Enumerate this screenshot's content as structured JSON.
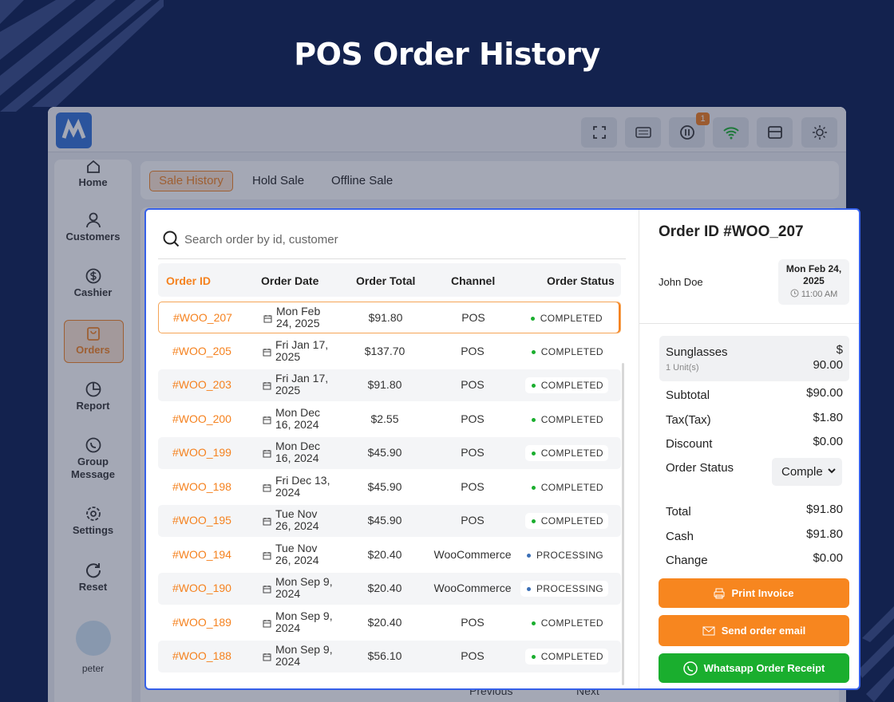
{
  "header": {
    "title": "POS Order History"
  },
  "topbar": {
    "badge": "1"
  },
  "sidebar": {
    "items": [
      "Home",
      "Customers",
      "Cashier",
      "Orders",
      "Report",
      "Group Message",
      "Settings",
      "Reset"
    ],
    "user": "peter"
  },
  "tabs": [
    "Sale History",
    "Hold Sale",
    "Offline Sale"
  ],
  "pagination": {
    "previous": "Previous",
    "next": "Next"
  },
  "search": {
    "placeholder": "Search order by id, customer"
  },
  "table": {
    "columns": [
      "Order ID",
      "Order Date",
      "Order Total",
      "Channel",
      "Order Status"
    ],
    "rows": [
      {
        "id": "#WOO_207",
        "date": "Mon Feb 24, 2025",
        "total": "$91.80",
        "channel": "POS",
        "status": "COMPLETED",
        "status_color": "#1aae2e"
      },
      {
        "id": "#WOO_205",
        "date": "Fri Jan 17, 2025",
        "total": "$137.70",
        "channel": "POS",
        "status": "COMPLETED",
        "status_color": "#1aae2e"
      },
      {
        "id": "#WOO_203",
        "date": "Fri Jan 17, 2025",
        "total": "$91.80",
        "channel": "POS",
        "status": "COMPLETED",
        "status_color": "#1aae2e"
      },
      {
        "id": "#WOO_200",
        "date": "Mon Dec 16, 2024",
        "total": "$2.55",
        "channel": "POS",
        "status": "COMPLETED",
        "status_color": "#1aae2e"
      },
      {
        "id": "#WOO_199",
        "date": "Mon Dec 16, 2024",
        "total": "$45.90",
        "channel": "POS",
        "status": "COMPLETED",
        "status_color": "#1aae2e"
      },
      {
        "id": "#WOO_198",
        "date": "Fri Dec 13, 2024",
        "total": "$45.90",
        "channel": "POS",
        "status": "COMPLETED",
        "status_color": "#1aae2e"
      },
      {
        "id": "#WOO_195",
        "date": "Tue Nov 26, 2024",
        "total": "$45.90",
        "channel": "POS",
        "status": "COMPLETED",
        "status_color": "#1aae2e"
      },
      {
        "id": "#WOO_194",
        "date": "Tue Nov 26, 2024",
        "total": "$20.40",
        "channel": "WooCommerce",
        "status": "PROCESSING",
        "status_color": "#3b6fb6"
      },
      {
        "id": "#WOO_190",
        "date": "Mon Sep 9, 2024",
        "total": "$20.40",
        "channel": "WooCommerce",
        "status": "PROCESSING",
        "status_color": "#3b6fb6"
      },
      {
        "id": "#WOO_189",
        "date": "Mon Sep 9, 2024",
        "total": "$20.40",
        "channel": "POS",
        "status": "COMPLETED",
        "status_color": "#1aae2e"
      },
      {
        "id": "#WOO_188",
        "date": "Mon Sep 9, 2024",
        "total": "$56.10",
        "channel": "POS",
        "status": "COMPLETED",
        "status_color": "#1aae2e"
      }
    ]
  },
  "detail": {
    "title": "Order ID #WOO_207",
    "customer": "John Doe",
    "date": "Mon Feb 24, 2025",
    "time": "11:00 AM",
    "item": {
      "name": "Sunglasses",
      "qty": "1 Unit(s)",
      "price": "$ 90.00"
    },
    "summary": [
      {
        "label": "Subtotal",
        "value": "$90.00"
      },
      {
        "label": "Tax(Tax)",
        "value": "$1.80"
      },
      {
        "label": "Discount",
        "value": "$0.00"
      }
    ],
    "status_label": "Order Status",
    "status_value": "Completed",
    "totals": [
      {
        "label": "Total",
        "value": "$91.80"
      },
      {
        "label": "Cash",
        "value": "$91.80"
      },
      {
        "label": "Change",
        "value": "$0.00"
      }
    ],
    "buttons": [
      "Print Invoice",
      "Send order email",
      "Whatsapp Order Receipt"
    ]
  }
}
